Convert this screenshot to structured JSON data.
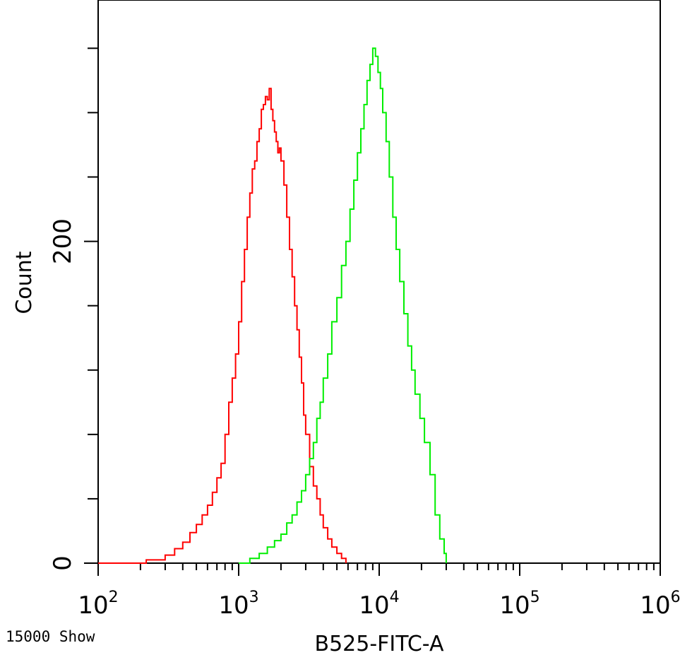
{
  "chart_data": {
    "type": "line",
    "xlabel": "B525-FITC-A",
    "ylabel": "Count",
    "x_scale": "log",
    "xlim": [
      100,
      1000000
    ],
    "ylim": [
      0,
      350
    ],
    "x_ticks": [
      {
        "value": 100,
        "base": "10",
        "exp": "2"
      },
      {
        "value": 1000,
        "base": "10",
        "exp": "3"
      },
      {
        "value": 10000,
        "base": "10",
        "exp": "4"
      },
      {
        "value": 100000,
        "base": "10",
        "exp": "5"
      },
      {
        "value": 1000000,
        "base": "10",
        "exp": "6"
      }
    ],
    "y_ticks": [
      {
        "value": 0,
        "label": "0"
      },
      {
        "value": 200,
        "label": "200"
      }
    ],
    "y_minor_ticks": [
      40,
      80,
      120,
      160,
      240,
      280,
      320
    ],
    "footer_text": "15000 Show",
    "series": [
      {
        "color": "#ff0000",
        "x": [
          100,
          220,
          300,
          350,
          400,
          450,
          500,
          550,
          600,
          650,
          700,
          750,
          800,
          850,
          900,
          950,
          1000,
          1050,
          1100,
          1150,
          1200,
          1250,
          1300,
          1350,
          1400,
          1450,
          1500,
          1550,
          1600,
          1650,
          1700,
          1750,
          1800,
          1850,
          1900,
          1950,
          2000,
          2100,
          2200,
          2300,
          2400,
          2500,
          2600,
          2700,
          2800,
          2900,
          3000,
          3200,
          3400,
          3600,
          3800,
          4000,
          4300,
          4600,
          5000,
          5400,
          5800
        ],
        "y": [
          0,
          2,
          5,
          9,
          13,
          19,
          24,
          30,
          36,
          44,
          53,
          62,
          80,
          100,
          115,
          130,
          150,
          175,
          195,
          215,
          230,
          245,
          250,
          262,
          270,
          282,
          285,
          290,
          288,
          295,
          282,
          275,
          268,
          262,
          255,
          258,
          250,
          235,
          215,
          195,
          178,
          160,
          145,
          128,
          112,
          92,
          80,
          60,
          48,
          40,
          30,
          22,
          15,
          10,
          6,
          3,
          0
        ]
      },
      {
        "color": "#00ee00",
        "x": [
          1000,
          1200,
          1400,
          1600,
          1800,
          2000,
          2200,
          2400,
          2600,
          2800,
          3000,
          3200,
          3400,
          3600,
          3800,
          4000,
          4300,
          4600,
          5000,
          5400,
          5800,
          6200,
          6600,
          7000,
          7400,
          7800,
          8200,
          8600,
          9000,
          9400,
          9800,
          10200,
          10600,
          11200,
          11800,
          12500,
          13200,
          14000,
          15000,
          16000,
          17000,
          18000,
          19500,
          21000,
          23000,
          25000,
          27000,
          29000,
          30000
        ],
        "y": [
          0,
          3,
          6,
          10,
          14,
          18,
          25,
          30,
          38,
          45,
          55,
          65,
          75,
          90,
          100,
          115,
          130,
          150,
          165,
          185,
          200,
          220,
          238,
          255,
          270,
          285,
          300,
          310,
          320,
          315,
          305,
          295,
          280,
          262,
          240,
          215,
          195,
          175,
          155,
          135,
          120,
          105,
          90,
          75,
          55,
          30,
          15,
          6,
          0
        ]
      }
    ]
  }
}
